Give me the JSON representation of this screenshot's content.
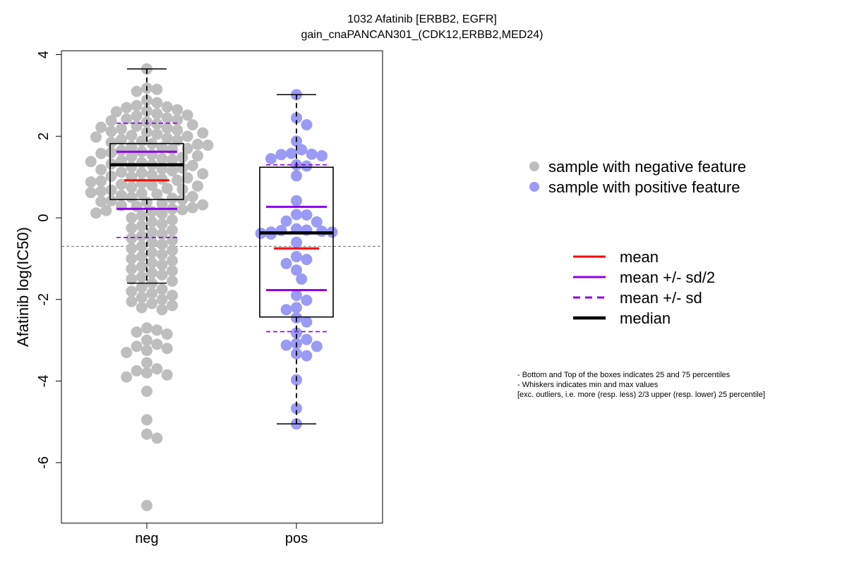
{
  "chart_data": {
    "type": "box",
    "title": "1032 Afatinib [ERBB2, EGFR]",
    "subtitle": "gain_cnaPANCAN301_(CDK12,ERBB2,MED24)",
    "xlabel": "",
    "ylabel": "Afatinib log(IC50)",
    "ylim": [
      -7.3,
      4.1
    ],
    "yticks": [
      4,
      2,
      0,
      -2,
      -4,
      -6
    ],
    "categories": [
      "neg",
      "pos"
    ],
    "reference_line_y": -0.7,
    "colors": {
      "neg_points": "#bebebe",
      "pos_points": "#9b9bf5",
      "mean": "#ff0000",
      "sd": "#8b00e8",
      "median": "#000000",
      "reference": "#888888"
    },
    "groups": [
      {
        "category": "neg",
        "min": -1.6,
        "q1": 0.45,
        "median": 1.3,
        "q3": 1.82,
        "max": 3.65,
        "mean": 0.92,
        "mean_plus_half_sd": 1.62,
        "mean_minus_half_sd": 0.22,
        "mean_plus_sd": 2.32,
        "mean_minus_sd": -0.48,
        "points": [
          3.65,
          3.18,
          3.15,
          3.1,
          2.88,
          2.82,
          2.75,
          2.72,
          2.7,
          2.65,
          2.62,
          2.6,
          2.55,
          2.52,
          2.5,
          2.45,
          2.42,
          2.4,
          2.38,
          2.35,
          2.3,
          2.28,
          2.25,
          2.22,
          2.2,
          2.18,
          2.15,
          2.12,
          2.1,
          2.08,
          2.05,
          2.02,
          2.0,
          1.98,
          1.95,
          1.92,
          1.9,
          1.88,
          1.85,
          1.82,
          1.8,
          1.78,
          1.75,
          1.72,
          1.7,
          1.68,
          1.65,
          1.62,
          1.6,
          1.58,
          1.55,
          1.52,
          1.5,
          1.48,
          1.45,
          1.42,
          1.4,
          1.38,
          1.35,
          1.32,
          1.3,
          1.28,
          1.25,
          1.22,
          1.2,
          1.18,
          1.15,
          1.12,
          1.1,
          1.08,
          1.05,
          1.02,
          1.0,
          0.98,
          0.95,
          0.92,
          0.9,
          0.88,
          0.85,
          0.82,
          0.8,
          0.78,
          0.75,
          0.72,
          0.7,
          0.68,
          0.65,
          0.62,
          0.6,
          0.58,
          0.55,
          0.52,
          0.5,
          0.48,
          0.45,
          0.42,
          0.4,
          0.38,
          0.35,
          0.32,
          0.3,
          0.28,
          0.25,
          0.22,
          0.2,
          0.18,
          0.15,
          0.12,
          0.1,
          0.05,
          0.0,
          -0.05,
          -0.1,
          -0.15,
          -0.2,
          -0.25,
          -0.3,
          -0.35,
          -0.4,
          -0.45,
          -0.5,
          -0.55,
          -0.6,
          -0.65,
          -0.7,
          -0.75,
          -0.8,
          -0.85,
          -0.9,
          -0.95,
          -1.0,
          -1.05,
          -1.1,
          -1.15,
          -1.2,
          -1.25,
          -1.3,
          -1.35,
          -1.4,
          -1.45,
          -1.5,
          -1.55,
          -1.6,
          -1.7,
          -1.75,
          -1.8,
          -1.85,
          -1.9,
          -1.95,
          -2.0,
          -2.05,
          -2.1,
          -2.15,
          -2.2,
          -2.25,
          -2.7,
          -2.75,
          -2.8,
          -2.85,
          -3.0,
          -3.1,
          -3.15,
          -3.2,
          -3.25,
          -3.3,
          -3.55,
          -3.7,
          -3.75,
          -3.8,
          -3.85,
          -3.9,
          -4.25,
          -4.95,
          -5.3,
          -5.4,
          -7.05
        ]
      },
      {
        "category": "pos",
        "min": -5.05,
        "q1": -2.43,
        "median": -0.37,
        "q3": 1.24,
        "max": 3.02,
        "mean": -0.75,
        "mean_plus_half_sd": 0.27,
        "mean_minus_half_sd": -1.77,
        "mean_plus_sd": 1.3,
        "mean_minus_sd": -2.79,
        "points": [
          3.02,
          2.45,
          2.28,
          1.88,
          1.67,
          1.58,
          1.56,
          1.55,
          1.52,
          1.45,
          1.3,
          1.27,
          1.03,
          0.42,
          0.08,
          0.07,
          -0.08,
          -0.1,
          -0.27,
          -0.3,
          -0.31,
          -0.33,
          -0.35,
          -0.35,
          -0.38,
          -0.4,
          -0.6,
          -0.95,
          -1.02,
          -1.12,
          -1.28,
          -1.5,
          -1.9,
          -2.02,
          -2.2,
          -2.25,
          -2.45,
          -2.55,
          -2.82,
          -2.98,
          -3.08,
          -3.12,
          -3.15,
          -3.33,
          -3.38,
          -3.97,
          -4.67,
          -5.05
        ]
      }
    ],
    "legend": {
      "points": [
        {
          "label": "sample with negative feature",
          "color": "#bebebe"
        },
        {
          "label": "sample with positive feature",
          "color": "#9b9bf5"
        }
      ],
      "lines": [
        {
          "label": "mean",
          "style": "solid",
          "color": "#ff0000"
        },
        {
          "label": "mean +/- sd/2",
          "style": "solid",
          "color": "#8b00e8"
        },
        {
          "label": "mean +/- sd",
          "style": "dashed",
          "color": "#8b00e8"
        },
        {
          "label": "median",
          "style": "thick",
          "color": "#000000"
        }
      ]
    },
    "notes": [
      "- Bottom and Top of the boxes indicates 25 and 75 percentiles",
      "- Whiskers indicates min and max values",
      "[exc. outliers, i.e. more (resp. less) 2/3 upper (resp. lower) 25 percentile]"
    ]
  }
}
